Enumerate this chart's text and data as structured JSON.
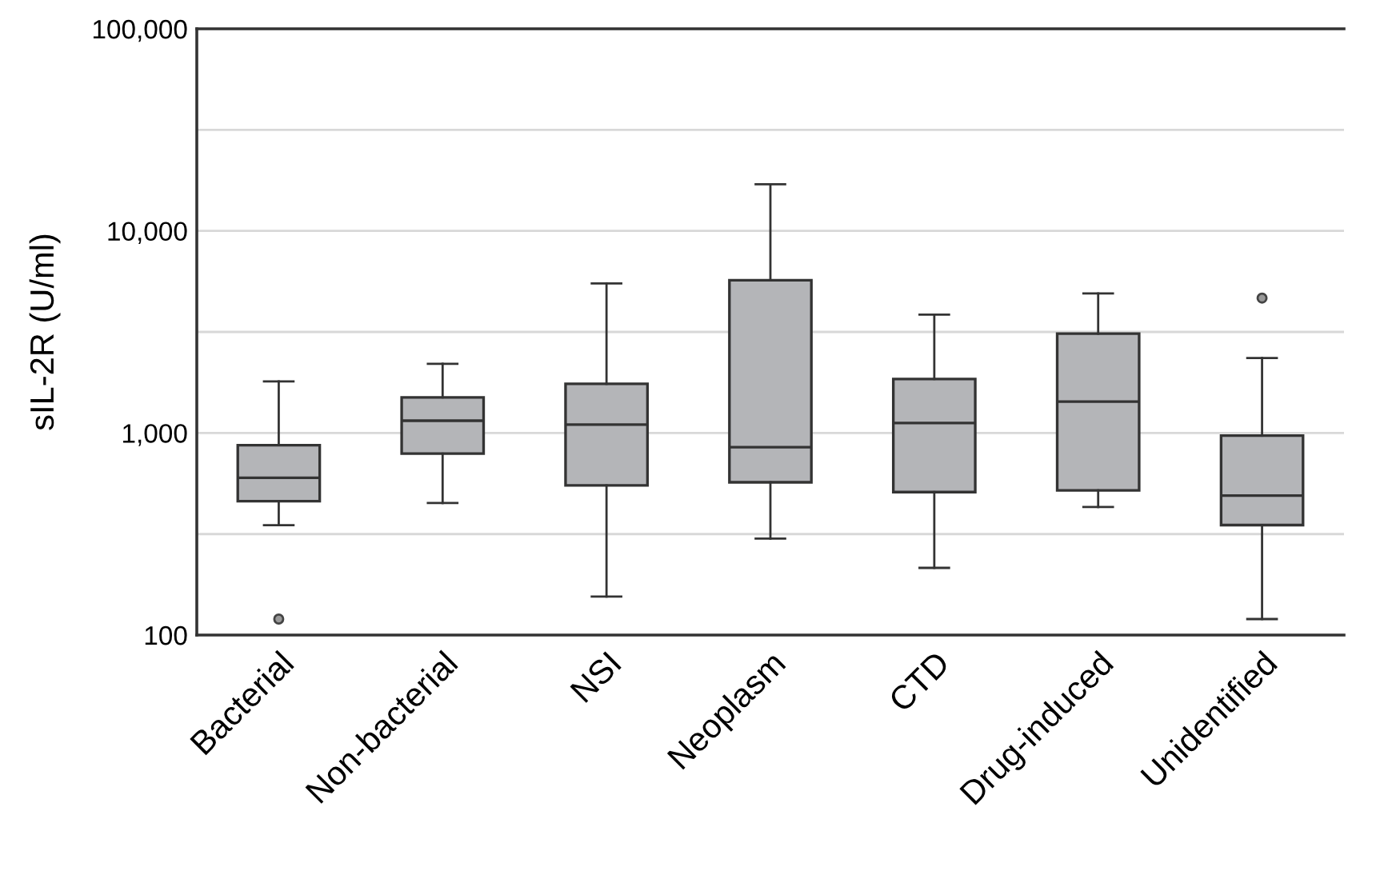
{
  "chart_data": {
    "type": "box",
    "ylabel": "sIL-2R (U/ml)",
    "categories": [
      "Bacterial",
      "Non-bacterial",
      "NSI",
      "Neoplasm",
      "CTD",
      "Drug-induced",
      "Unidentified"
    ],
    "boxes": [
      {
        "low": 350,
        "q1": 460,
        "median": 600,
        "q3": 870,
        "high": 1800,
        "outliers": [
          120
        ]
      },
      {
        "low": 450,
        "q1": 790,
        "median": 1150,
        "q3": 1500,
        "high": 2200
      },
      {
        "low": 155,
        "q1": 550,
        "median": 1100,
        "q3": 1750,
        "high": 5500
      },
      {
        "low": 300,
        "q1": 570,
        "median": 850,
        "q3": 5700,
        "high": 17000
      },
      {
        "low": 215,
        "q1": 510,
        "median": 1120,
        "q3": 1850,
        "high": 3850
      },
      {
        "low": 430,
        "q1": 520,
        "median": 1430,
        "q3": 3100,
        "high": 4900
      },
      {
        "low": 120,
        "q1": 350,
        "median": 490,
        "q3": 970,
        "high": 2350,
        "outliers": [
          4650
        ]
      }
    ],
    "color": "#b4b5b8",
    "log": true,
    "ylim": [
      100,
      100000
    ],
    "yticks": [
      {
        "value": 100,
        "label": "100"
      },
      {
        "value": 316,
        "label": null
      },
      {
        "value": 1000,
        "label": "1,000"
      },
      {
        "value": 3162,
        "label": null
      },
      {
        "value": 10000,
        "label": "10,000"
      },
      {
        "value": 31623,
        "label": null
      },
      {
        "value": 100000,
        "label": "100,000"
      }
    ],
    "grid": "y"
  }
}
